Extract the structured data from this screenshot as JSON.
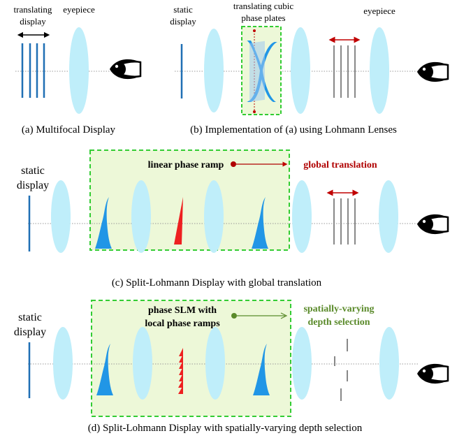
{
  "panel_a": {
    "label_translating": "translating",
    "label_display": "display",
    "label_eyepiece": "eyepiece",
    "caption": "(a) Multifocal Display"
  },
  "panel_b": {
    "label_static": "static",
    "label_display": "display",
    "label_plates_line1": "translating cubic",
    "label_plates_line2": "phase plates",
    "label_eyepiece": "eyepiece",
    "caption": "(b) Implementation of (a) using Lohmann Lenses"
  },
  "panel_c": {
    "label_static": "static",
    "label_display": "display",
    "label_ramp": "linear phase ramp",
    "label_result": "global translation",
    "caption": "(c) Split-Lohmann Display with global translation"
  },
  "panel_d": {
    "label_static": "static",
    "label_display": "display",
    "label_slm_line1": "phase SLM with",
    "label_slm_line2": "local phase ramps",
    "label_result_line1": "spatially-varying",
    "label_result_line2": "depth selection",
    "caption": "(d) Split-Lohmann Display with spatially-varying depth selection"
  },
  "colors": {
    "lens": "#bfeefa",
    "display_blue": "#1f6fb4",
    "plate_blue": "#2196e6",
    "ramp_red": "#ee2020",
    "green_box_fill": "#edf8d8",
    "green_box_stroke": "#33cc33",
    "dark_red": "#b00000",
    "olive_green": "#5a8a2a",
    "gray_lines": "#888888"
  }
}
